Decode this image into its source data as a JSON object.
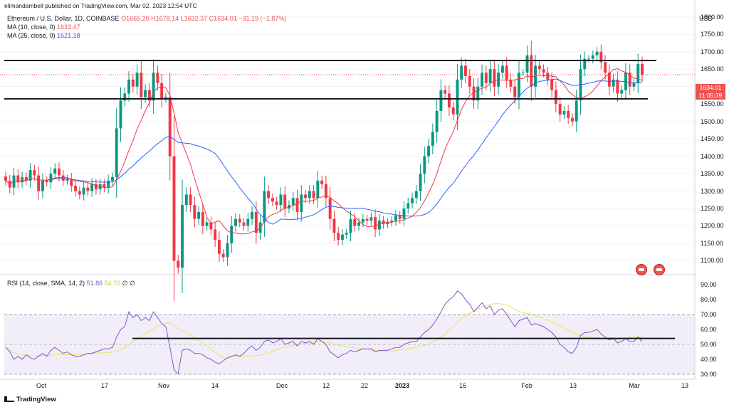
{
  "header": {
    "publisher": "elimandambell published on TradingView.com, Mar 02, 2023 12:54 UTC",
    "symbol": "Ethereum / U.S. Dollar, 1D, COINBASE",
    "ohlc": "O1665.20 H1678.14 L1632.37 C1634.01 −31.19 (−1.87%)",
    "ma10_label": "MA (10, close, 0)",
    "ma10_value": "1633.47",
    "ma25_label": "MA (25, close, 0)",
    "ma25_value": "1621.18",
    "rsi_label": "RSI (14, close, SMA, 14, 2)",
    "rsi_value": "51.86",
    "rsi_ma_value": "54.70",
    "rsi_extra": "∅ ∅"
  },
  "axis": {
    "currency": "USD",
    "price_ticks": [
      "1800.00",
      "1750.00",
      "1700.00",
      "1650.00",
      "1600.00",
      "1550.00",
      "1500.00",
      "1450.00",
      "1400.00",
      "1350.00",
      "1300.00",
      "1250.00",
      "1200.00",
      "1150.00",
      "1100.00"
    ],
    "rsi_ticks": [
      "90.00",
      "80.00",
      "70.00",
      "60.00",
      "50.00",
      "40.00",
      "30.00"
    ],
    "x_ticks": [
      "Oct",
      "17",
      "Nov",
      "14",
      "Dec",
      "12",
      "22",
      "2023",
      "16",
      "Feb",
      "13",
      "Mar",
      "13"
    ]
  },
  "price_tag": {
    "price": "1634.01",
    "timer": "11:05:39"
  },
  "footer": {
    "brand": "TradingView"
  },
  "colors": {
    "up": "#089981",
    "down": "#f23645",
    "ma10": "#f23645",
    "ma25": "#2962ff",
    "rsi": "#7e57c2",
    "rsi_ma": "#e6e65c"
  },
  "chart_data": {
    "type": "candlestick",
    "price_range": [
      1060,
      1820
    ],
    "resistance": 1675,
    "support": 1565,
    "current_price": 1634.01,
    "rsi_range": [
      28,
      95
    ],
    "rsi_band": [
      30,
      70
    ],
    "rsi_midline": 50,
    "rsi_trendline": 54,
    "close": [
      1330,
      1310,
      1345,
      1325,
      1340,
      1330,
      1360,
      1345,
      1300,
      1330,
      1325,
      1350,
      1365,
      1345,
      1330,
      1335,
      1315,
      1300,
      1290,
      1310,
      1300,
      1320,
      1305,
      1320,
      1310,
      1330,
      1340,
      1480,
      1560,
      1580,
      1620,
      1600,
      1640,
      1570,
      1590,
      1560,
      1640,
      1610,
      1565,
      1570,
      1400,
      1100,
      1080,
      1260,
      1290,
      1260,
      1220,
      1240,
      1200,
      1210,
      1190,
      1160,
      1120,
      1110,
      1150,
      1200,
      1220,
      1210,
      1200,
      1220,
      1240,
      1180,
      1210,
      1300,
      1280,
      1270,
      1260,
      1290,
      1250,
      1260,
      1280,
      1240,
      1290,
      1280,
      1300,
      1280,
      1330,
      1320,
      1280,
      1220,
      1180,
      1160,
      1175,
      1180,
      1220,
      1200,
      1210,
      1220,
      1215,
      1225,
      1190,
      1215,
      1205,
      1210,
      1215,
      1230,
      1220,
      1250,
      1265,
      1280,
      1300,
      1350,
      1400,
      1430,
      1470,
      1530,
      1590,
      1580,
      1540,
      1520,
      1620,
      1660,
      1630,
      1600,
      1560,
      1600,
      1640,
      1610,
      1650,
      1600,
      1640,
      1660,
      1620,
      1600,
      1570,
      1640,
      1640,
      1690,
      1600,
      1660,
      1650,
      1640,
      1620,
      1590,
      1550,
      1520,
      1530,
      1510,
      1500,
      1560,
      1650,
      1680,
      1680,
      1690,
      1700,
      1670,
      1640,
      1600,
      1620,
      1580,
      1590,
      1640,
      1600,
      1610,
      1665,
      1634
    ],
    "rsi": [
      48,
      45,
      40,
      42,
      40,
      43,
      41,
      40,
      42,
      44,
      42,
      46,
      48,
      46,
      44,
      45,
      43,
      42,
      42,
      43,
      44,
      44,
      45,
      46,
      47,
      47,
      48,
      55,
      60,
      62,
      72,
      68,
      70,
      66,
      68,
      66,
      72,
      68,
      64,
      62,
      48,
      33,
      30,
      46,
      47,
      46,
      44,
      44,
      43,
      41,
      40,
      38,
      37,
      39,
      41,
      42,
      43,
      42,
      44,
      47,
      49,
      46,
      48,
      52,
      53,
      51,
      52,
      54,
      50,
      51,
      52,
      49,
      52,
      51,
      52,
      50,
      54,
      52,
      50,
      45,
      43,
      41,
      43,
      44,
      46,
      45,
      46,
      47,
      47,
      47,
      45,
      46,
      46,
      46,
      47,
      48,
      48,
      50,
      51,
      52,
      52,
      55,
      58,
      60,
      63,
      67,
      72,
      77,
      80,
      82,
      86,
      84,
      80,
      77,
      72,
      75,
      78,
      74,
      76,
      70,
      73,
      74,
      70,
      66,
      62,
      66,
      67,
      68,
      63,
      64,
      63,
      62,
      60,
      58,
      55,
      50,
      48,
      45,
      44,
      48,
      56,
      58,
      58,
      59,
      60,
      57,
      55,
      53,
      54,
      51,
      52,
      54,
      52,
      52,
      55,
      52
    ]
  }
}
